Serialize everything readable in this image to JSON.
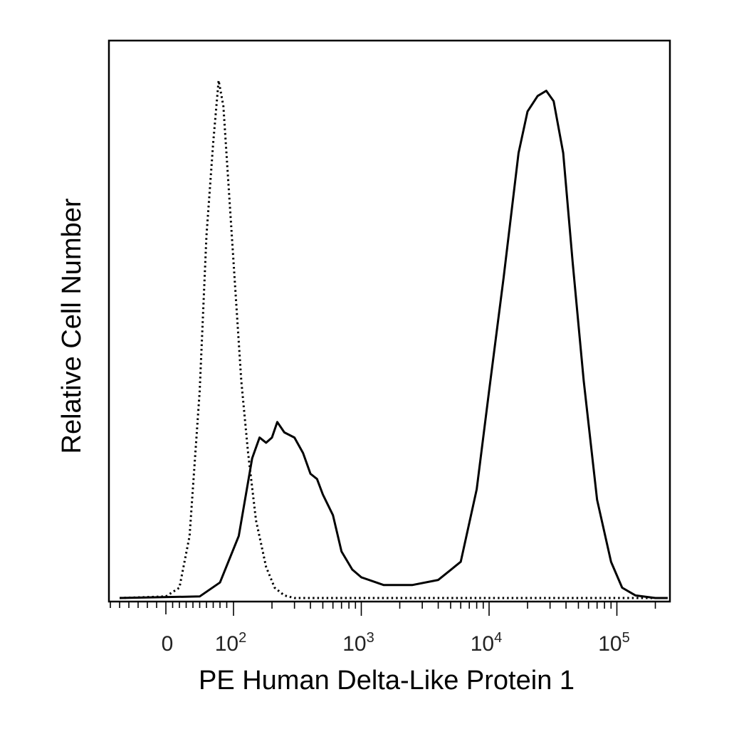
{
  "chart_data": {
    "type": "line",
    "title": "",
    "xlabel": "PE Human Delta-Like Protein 1",
    "ylabel": "Relative Cell Number",
    "x_scale": "biexponential",
    "xlim": [
      -80,
      250000
    ],
    "ylim": [
      0,
      1
    ],
    "grid": false,
    "legend": "none",
    "x_ticks": [
      {
        "value": 0,
        "base": "0",
        "exp": ""
      },
      {
        "value": 100,
        "base": "10",
        "exp": "2"
      },
      {
        "value": 1000,
        "base": "10",
        "exp": "3"
      },
      {
        "value": 10000,
        "base": "10",
        "exp": "4"
      },
      {
        "value": 100000,
        "base": "10",
        "exp": "5"
      }
    ],
    "series": [
      {
        "style": "dotted",
        "color": "#000000",
        "points": [
          [
            -50,
            0
          ],
          [
            0,
            0.003
          ],
          [
            20,
            0.02
          ],
          [
            35,
            0.12
          ],
          [
            50,
            0.4
          ],
          [
            60,
            0.7
          ],
          [
            70,
            0.88
          ],
          [
            78,
            1.0
          ],
          [
            85,
            0.95
          ],
          [
            100,
            0.65
          ],
          [
            115,
            0.42
          ],
          [
            130,
            0.28
          ],
          [
            150,
            0.15
          ],
          [
            180,
            0.06
          ],
          [
            210,
            0.02
          ],
          [
            250,
            0.005
          ],
          [
            300,
            0
          ],
          [
            1000,
            0
          ],
          [
            10000,
            0
          ],
          [
            100000,
            0
          ],
          [
            250000,
            0
          ]
        ]
      },
      {
        "style": "solid",
        "color": "#000000",
        "points": [
          [
            -50,
            0
          ],
          [
            50,
            0.003
          ],
          [
            80,
            0.03
          ],
          [
            110,
            0.12
          ],
          [
            140,
            0.27
          ],
          [
            160,
            0.31
          ],
          [
            180,
            0.3
          ],
          [
            200,
            0.31
          ],
          [
            220,
            0.34
          ],
          [
            250,
            0.32
          ],
          [
            300,
            0.31
          ],
          [
            350,
            0.28
          ],
          [
            400,
            0.24
          ],
          [
            450,
            0.23
          ],
          [
            500,
            0.2
          ],
          [
            600,
            0.16
          ],
          [
            700,
            0.09
          ],
          [
            850,
            0.055
          ],
          [
            1000,
            0.04
          ],
          [
            1500,
            0.025
          ],
          [
            2500,
            0.025
          ],
          [
            4000,
            0.035
          ],
          [
            6000,
            0.07
          ],
          [
            8000,
            0.21
          ],
          [
            10000,
            0.4
          ],
          [
            13000,
            0.62
          ],
          [
            17000,
            0.86
          ],
          [
            20000,
            0.94
          ],
          [
            24000,
            0.97
          ],
          [
            28000,
            0.98
          ],
          [
            32000,
            0.96
          ],
          [
            38000,
            0.86
          ],
          [
            45000,
            0.65
          ],
          [
            55000,
            0.42
          ],
          [
            70000,
            0.19
          ],
          [
            90000,
            0.07
          ],
          [
            110000,
            0.02
          ],
          [
            140000,
            0.005
          ],
          [
            200000,
            0
          ],
          [
            250000,
            0
          ]
        ]
      }
    ]
  }
}
